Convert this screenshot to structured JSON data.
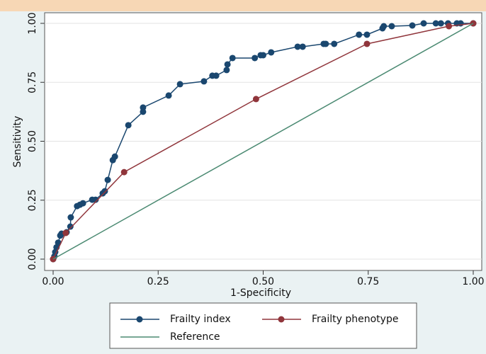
{
  "chart_data": {
    "type": "line",
    "xlabel": "1-Specificity",
    "ylabel": "Sensitivity",
    "xlim": [
      0,
      1
    ],
    "ylim": [
      0,
      1
    ],
    "xticks": [
      {
        "value": 0,
        "label": "0.00"
      },
      {
        "value": 0.25,
        "label": "0.25"
      },
      {
        "value": 0.5,
        "label": "0.50"
      },
      {
        "value": 0.75,
        "label": "0.75"
      },
      {
        "value": 1,
        "label": "1.00"
      }
    ],
    "yticks": [
      {
        "value": 0,
        "label": "0.00"
      },
      {
        "value": 0.25,
        "label": "0.25"
      },
      {
        "value": 0.5,
        "label": "0.50"
      },
      {
        "value": 0.75,
        "label": "0.75"
      },
      {
        "value": 1,
        "label": "1.00"
      }
    ],
    "grid": true,
    "legend": "bottom",
    "series": [
      {
        "name": "Frailty index",
        "color": "#1a476f",
        "markers": true,
        "x": [
          0,
          0.003,
          0.005,
          0.008,
          0.012,
          0.017,
          0.02,
          0.032,
          0.041,
          0.042,
          0.057,
          0.064,
          0.071,
          0.093,
          0.101,
          0.118,
          0.123,
          0.13,
          0.142,
          0.147,
          0.179,
          0.214,
          0.214,
          0.275,
          0.302,
          0.359,
          0.379,
          0.388,
          0.413,
          0.415,
          0.427,
          0.48,
          0.494,
          0.5,
          0.519,
          0.582,
          0.594,
          0.644,
          0.649,
          0.669,
          0.728,
          0.747,
          0.784,
          0.787,
          0.806,
          0.855,
          0.882,
          0.911,
          0.923,
          0.94,
          0.961,
          0.97,
          1
        ],
        "values": [
          0,
          0.012,
          0.03,
          0.05,
          0.07,
          0.1,
          0.108,
          0.114,
          0.138,
          0.177,
          0.225,
          0.231,
          0.237,
          0.252,
          0.252,
          0.279,
          0.288,
          0.336,
          0.42,
          0.435,
          0.568,
          0.625,
          0.643,
          0.694,
          0.742,
          0.754,
          0.778,
          0.778,
          0.802,
          0.826,
          0.853,
          0.853,
          0.865,
          0.865,
          0.877,
          0.901,
          0.901,
          0.913,
          0.913,
          0.913,
          0.952,
          0.952,
          0.979,
          0.988,
          0.988,
          0.991,
          1,
          1,
          1,
          1,
          1,
          1,
          1
        ]
      },
      {
        "name": "Frailty phenotype",
        "color": "#90353b",
        "markers": true,
        "x": [
          0,
          0.03,
          0.169,
          0.483,
          0.747,
          0.942,
          1
        ],
        "values": [
          0,
          0.111,
          0.369,
          0.679,
          0.913,
          0.988,
          1
        ]
      },
      {
        "name": "Reference",
        "color": "#4b8a72",
        "markers": false,
        "x": [
          0,
          1
        ],
        "values": [
          0,
          1
        ]
      }
    ]
  }
}
